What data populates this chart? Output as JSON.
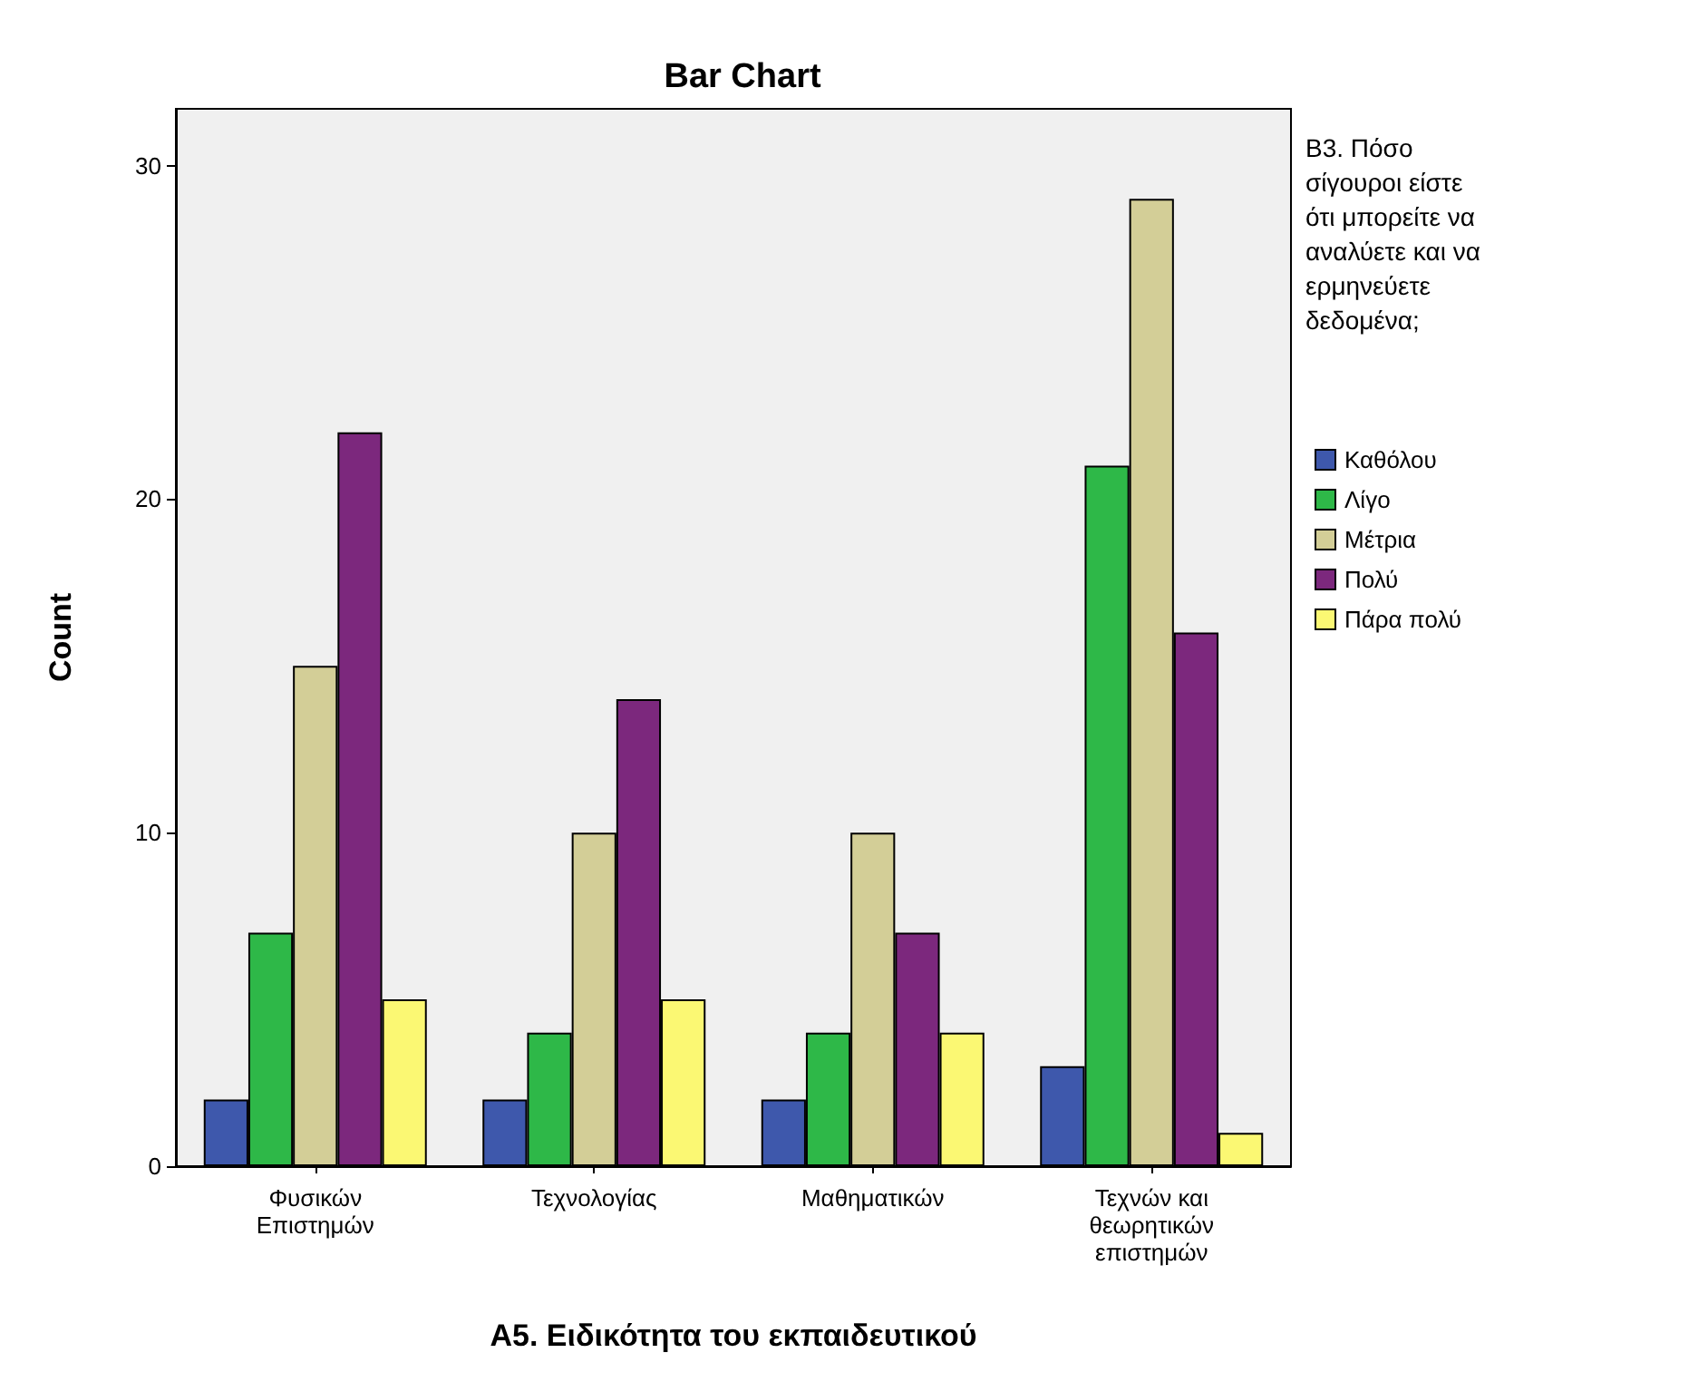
{
  "chart_data": {
    "type": "bar",
    "title": "Bar Chart",
    "xlabel": "Α5. Ειδικότητα του εκπαιδευτικού",
    "ylabel": "Count",
    "legend_title": "Β3. Πόσο σίγουροι είστε ότι μπορείτε να αναλύετε και να ερμηνεύετε δεδομένα;",
    "categories": [
      "Φυσικών Επιστημών",
      "Τεχνολογίας",
      "Μαθηματικών",
      "Τεχνών και θεωρητικών επιστημών"
    ],
    "series": [
      {
        "name": "Καθόλου",
        "color": "#3e58ac",
        "values": [
          2,
          2,
          2,
          3
        ]
      },
      {
        "name": "Λίγο",
        "color": "#2eb848",
        "values": [
          7,
          4,
          4,
          21
        ]
      },
      {
        "name": "Μέτρια",
        "color": "#d3ce97",
        "values": [
          15,
          10,
          10,
          29
        ]
      },
      {
        "name": "Πολύ",
        "color": "#7c287d",
        "values": [
          22,
          14,
          7,
          16
        ]
      },
      {
        "name": "Πάρα πολύ",
        "color": "#fbf873",
        "values": [
          5,
          5,
          4,
          1
        ]
      }
    ],
    "ylim": [
      0,
      31.7
    ],
    "yticks": [
      0,
      10,
      20,
      30
    ],
    "grid": false,
    "legend": "right"
  }
}
